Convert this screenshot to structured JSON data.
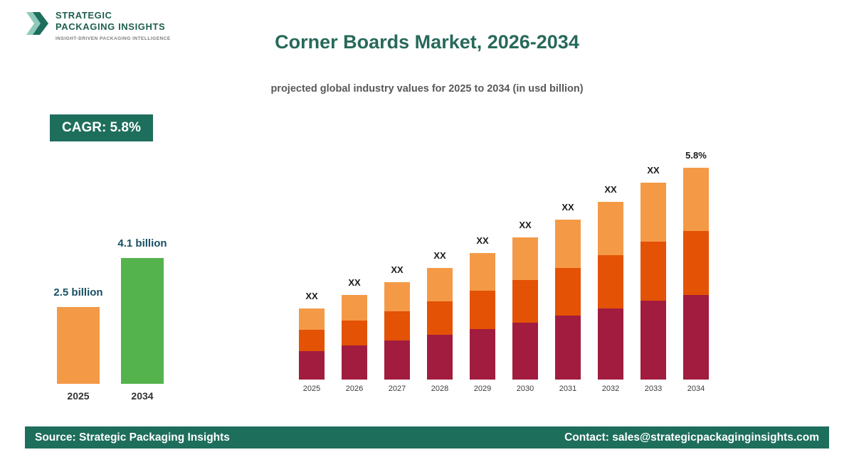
{
  "logo": {
    "line1": "STRATEGIC",
    "line2": "PACKAGING INSIGHTS",
    "tagline": "INSIGHT-DRIVEN PACKAGING INTELLIGENCE"
  },
  "header": {
    "title": "Corner Boards Market, 2026-2034",
    "subtitle": "projected global industry values for 2025 to 2034 (in usd billion)"
  },
  "cagr_badge": "CAGR: 5.8%",
  "mini_chart": {
    "type": "bar",
    "unit": "usd billion",
    "bars": [
      {
        "label": "2.5 billion",
        "year": "2025",
        "value": 2.5,
        "color": "#f49a47"
      },
      {
        "label": "4.1 billion",
        "year": "2034",
        "value": 4.1,
        "color": "#54b34c"
      }
    ]
  },
  "chart_data": {
    "type": "bar",
    "stacked": true,
    "title": "Corner Boards Market, 2026-2034",
    "xlabel": "",
    "ylabel": "usd billion",
    "categories": [
      "2025",
      "2026",
      "2027",
      "2028",
      "2029",
      "2030",
      "2031",
      "2032",
      "2033",
      "2034"
    ],
    "totals": [
      2.5,
      2.65,
      2.8,
      2.96,
      3.13,
      3.31,
      3.51,
      3.71,
      3.93,
      4.1
    ],
    "bar_labels": [
      "XX",
      "XX",
      "XX",
      "XX",
      "XX",
      "XX",
      "XX",
      "XX",
      "XX",
      "5.8%"
    ],
    "segment_fractions": [
      0.4,
      0.3,
      0.3
    ],
    "segment_colors": [
      "#a21c3f",
      "#e35205",
      "#f49a47"
    ],
    "segment_names": [
      "series-bottom",
      "series-middle",
      "series-top"
    ],
    "legend": "none",
    "grid": false
  },
  "footer": {
    "source": "Source: Strategic Packaging Insights",
    "contact": "Contact: sales@strategicpackaginginsights.com"
  },
  "colors": {
    "accent_teal": "#1e6e5c",
    "title_green": "#27695a",
    "maroon": "#a21c3f",
    "dark_orange": "#e35205",
    "light_orange": "#f49a47",
    "green_bar": "#54b34c"
  }
}
